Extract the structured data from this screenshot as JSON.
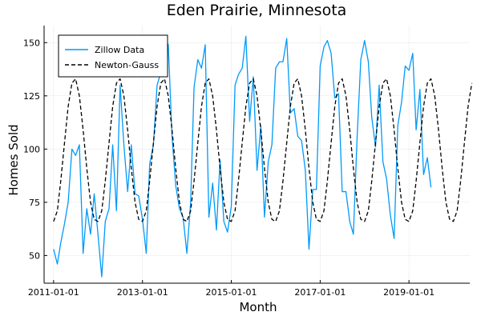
{
  "chart_data": {
    "type": "line",
    "title": "Eden Prairie, Minnesota",
    "xlabel": "Month",
    "ylabel": "Homes Sold",
    "x_start": "2011-01",
    "x_range": [
      "2010-10-15",
      "2020-05-15"
    ],
    "ylim": [
      37,
      158
    ],
    "x_ticks": [
      "2011-01-01",
      "2013-01-01",
      "2015-01-01",
      "2017-01-01",
      "2019-01-01"
    ],
    "y_ticks": [
      50,
      75,
      100,
      125,
      150
    ],
    "grid": true,
    "legend_position": "top-left",
    "series": [
      {
        "name": "Zillow Data",
        "color": "#009af9",
        "dash": "solid",
        "values": [
          53,
          46,
          56,
          65,
          75,
          100,
          97,
          102,
          51,
          72,
          60,
          79,
          60,
          40,
          66,
          72,
          102,
          71,
          130,
          102,
          80,
          102,
          79,
          78,
          67,
          51,
          93,
          102,
          130,
          136,
          152,
          149,
          106,
          83,
          72,
          68,
          51,
          75,
          129,
          142,
          138,
          149,
          68,
          84,
          62,
          95,
          66,
          61,
          73,
          130,
          135,
          138,
          153,
          113,
          134,
          90,
          111,
          68,
          94,
          102,
          138,
          141,
          141,
          152,
          117,
          119,
          106,
          104,
          90,
          53,
          81,
          81,
          139,
          148,
          151,
          145,
          124,
          126,
          80,
          80,
          66,
          60,
          106,
          142,
          151,
          141,
          115,
          101,
          130,
          94,
          86,
          69,
          58,
          111,
          122,
          139,
          137,
          145,
          109,
          128,
          88,
          96,
          82
        ]
      },
      {
        "name": "Newton-Gauss",
        "color": "#000000",
        "dash": "dashed",
        "values": [
          66,
          71,
          85,
          103,
          120,
          131,
          133,
          125,
          109,
          91,
          75,
          67,
          66,
          71,
          85,
          103,
          120,
          131,
          133,
          125,
          109,
          91,
          75,
          67,
          66,
          71,
          85,
          103,
          120,
          131,
          133,
          125,
          109,
          91,
          75,
          67,
          66,
          71,
          85,
          103,
          120,
          131,
          133,
          125,
          109,
          91,
          75,
          67,
          66,
          71,
          85,
          103,
          120,
          131,
          133,
          125,
          109,
          91,
          75,
          67,
          66,
          71,
          85,
          103,
          120,
          131,
          133,
          125,
          109,
          91,
          75,
          67,
          66,
          71,
          85,
          103,
          120,
          131,
          133,
          125,
          109,
          91,
          75,
          67,
          66,
          71,
          85,
          103,
          120,
          131,
          133,
          125,
          109,
          91,
          75,
          67,
          66,
          71,
          85,
          103,
          120,
          131,
          133,
          125,
          109,
          91,
          75,
          67,
          66,
          71,
          85,
          103,
          120,
          131
        ]
      }
    ]
  }
}
